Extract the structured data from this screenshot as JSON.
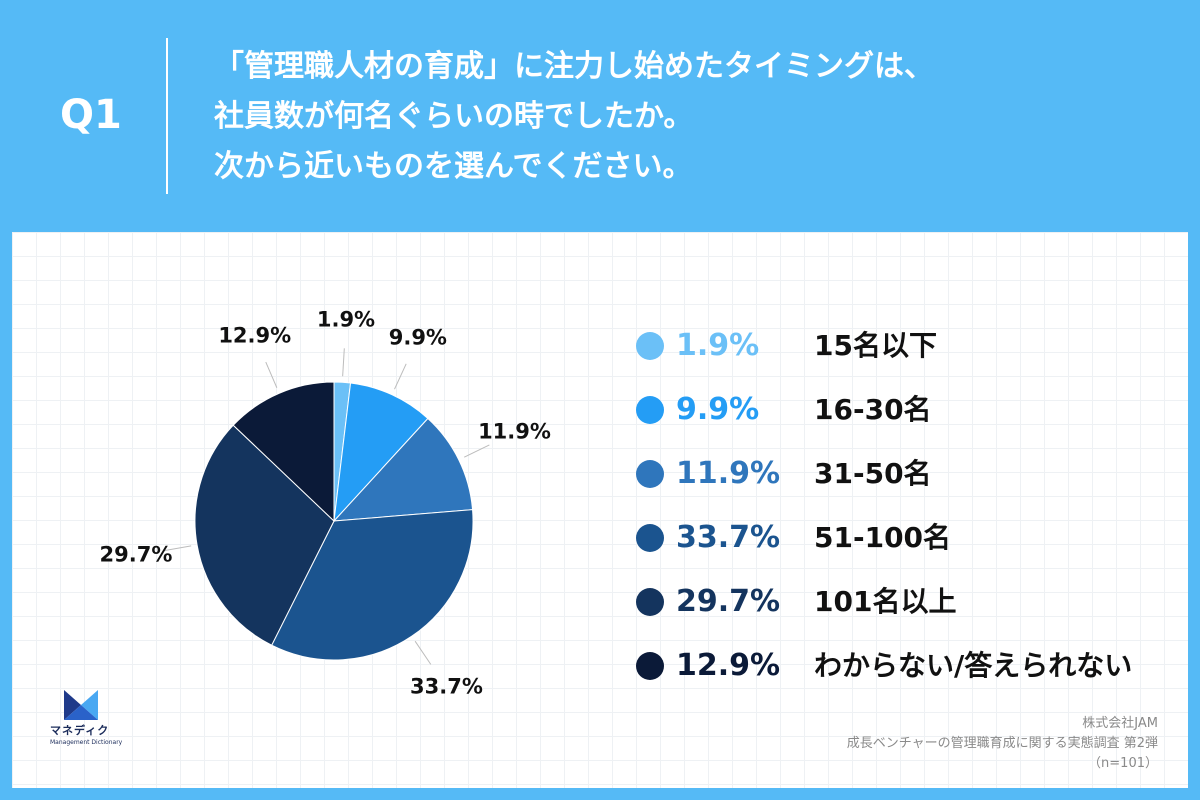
{
  "header": {
    "q_label": "Q1",
    "question_lines": [
      "「管理職人材の育成」に注力し始めたタイミングは、",
      "社員数が何名ぐらいの時でしたか。",
      "次から近いものを選んでください。"
    ]
  },
  "chart_data": {
    "type": "pie",
    "categories": [
      "15名以下",
      "16-30名",
      "31-50名",
      "51-100名",
      "101名以上",
      "わからない/答えられない"
    ],
    "values": [
      1.9,
      9.9,
      11.9,
      33.7,
      29.7,
      12.9
    ],
    "value_labels": [
      "1.9%",
      "9.9%",
      "11.9%",
      "33.7%",
      "29.7%",
      "12.9%"
    ],
    "colors": [
      "#6BC0F7",
      "#249DF5",
      "#2F76BC",
      "#1B548F",
      "#14345E",
      "#0B1A38"
    ],
    "legend_placement": "right"
  },
  "logo": {
    "name": "マネディク",
    "sub": "Management Dictionary"
  },
  "source": {
    "company": "株式会社JAM",
    "survey": "成長ベンチャーの管理職育成に関する実態調査 第2弾",
    "sample": "（n=101）"
  }
}
